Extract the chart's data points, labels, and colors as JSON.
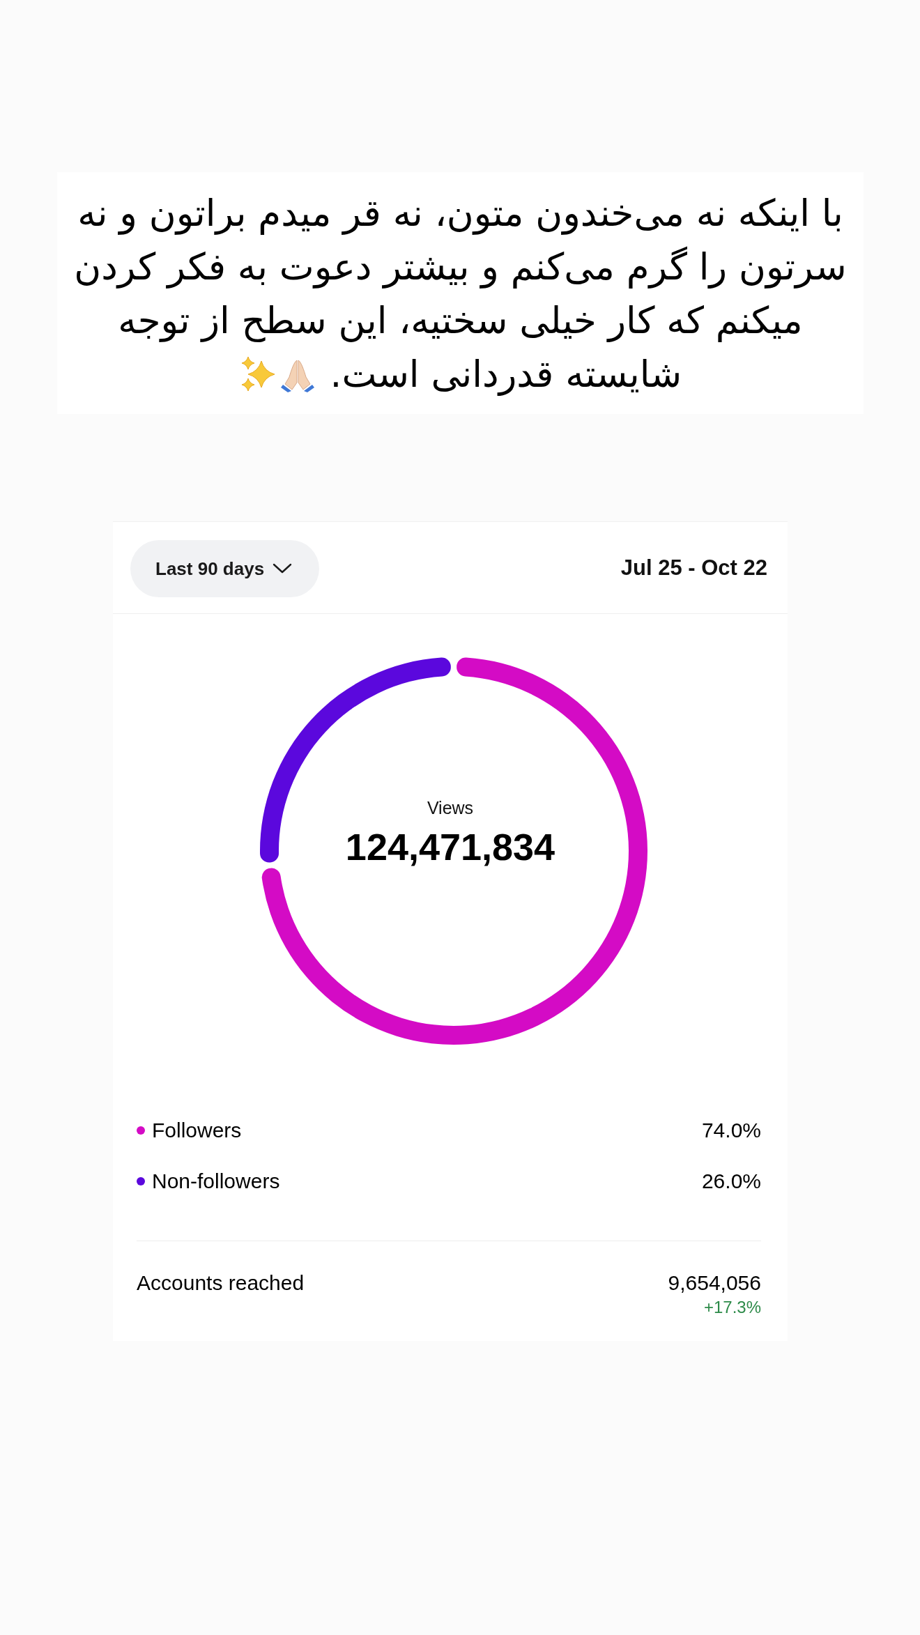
{
  "chart_data": {
    "type": "donut",
    "title": "با اینکه نه می‌خندون متون، نه قر میدم براتون و نه سرتون را گرم می‌کنم و بیشتر دعوت به فکر کردن میکنم که کار خیلی سختیه، این سطح از توجه شایسته قدردانی است.",
    "subtitle": "Jul 25 - Oct 22",
    "categories": [
      "Followers",
      "Non-followers"
    ],
    "values": [
      74,
      26
    ],
    "colors": [
      "#d40bc5",
      "#5b08dd"
    ],
    "value_labels": [
      "74.0%",
      "26.0%"
    ],
    "legend": "bottom",
    "annotations": [
      "Last 90 days",
      "Views",
      "124,471,834",
      "Accounts reached",
      "9,654,056",
      "+17.3%"
    ]
  }
}
